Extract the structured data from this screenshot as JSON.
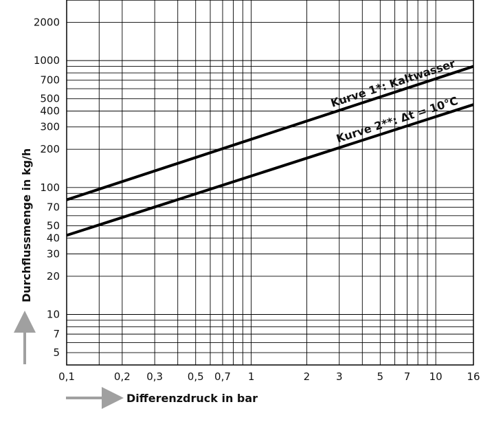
{
  "chart_data": {
    "type": "line",
    "xscale": "log",
    "yscale": "log",
    "xlabel": "Differenzdruck in bar",
    "ylabel": "Durchflussmenge in kg/h",
    "xlim": [
      0.1,
      16
    ],
    "ylim": [
      4,
      3000
    ],
    "grid": true,
    "legend": "inline labels",
    "x_tick_labels": [
      {
        "value": 0.1,
        "label": "0,1"
      },
      {
        "value": 0.2,
        "label": "0,2"
      },
      {
        "value": 0.3,
        "label": "0,3"
      },
      {
        "value": 0.5,
        "label": "0,5"
      },
      {
        "value": 0.7,
        "label": "0,7"
      },
      {
        "value": 1,
        "label": "1"
      },
      {
        "value": 2,
        "label": "2"
      },
      {
        "value": 3,
        "label": "3"
      },
      {
        "value": 5,
        "label": "5"
      },
      {
        "value": 7,
        "label": "7"
      },
      {
        "value": 10,
        "label": "10"
      },
      {
        "value": 16,
        "label": "16"
      }
    ],
    "x_grid": [
      0.1,
      0.15,
      0.2,
      0.3,
      0.4,
      0.5,
      0.6,
      0.7,
      0.8,
      0.9,
      1,
      2,
      3,
      4,
      5,
      6,
      7,
      8,
      9,
      10,
      16
    ],
    "y_tick_labels": [
      {
        "value": 5,
        "label": "5"
      },
      {
        "value": 7,
        "label": "7"
      },
      {
        "value": 10,
        "label": "10"
      },
      {
        "value": 20,
        "label": "20"
      },
      {
        "value": 30,
        "label": "30"
      },
      {
        "value": 40,
        "label": "40"
      },
      {
        "value": 50,
        "label": "50"
      },
      {
        "value": 70,
        "label": "70"
      },
      {
        "value": 100,
        "label": "100"
      },
      {
        "value": 200,
        "label": "200"
      },
      {
        "value": 300,
        "label": "300"
      },
      {
        "value": 400,
        "label": "400"
      },
      {
        "value": 500,
        "label": "500"
      },
      {
        "value": 700,
        "label": "700"
      },
      {
        "value": 1000,
        "label": "1000"
      },
      {
        "value": 2000,
        "label": "2000"
      }
    ],
    "y_grid": [
      5,
      6,
      7,
      8,
      9,
      10,
      20,
      30,
      40,
      50,
      60,
      70,
      80,
      90,
      100,
      200,
      300,
      400,
      500,
      600,
      700,
      800,
      900,
      1000,
      2000
    ],
    "series": [
      {
        "name": "Kurve 1*: Kaltwasser",
        "x": [
          0.1,
          16
        ],
        "y": [
          80,
          900
        ],
        "color": "#000000"
      },
      {
        "name": "Kurve 2**: Δt = 10°C",
        "x": [
          0.1,
          16
        ],
        "y": [
          42,
          450
        ],
        "color": "#000000"
      }
    ]
  }
}
